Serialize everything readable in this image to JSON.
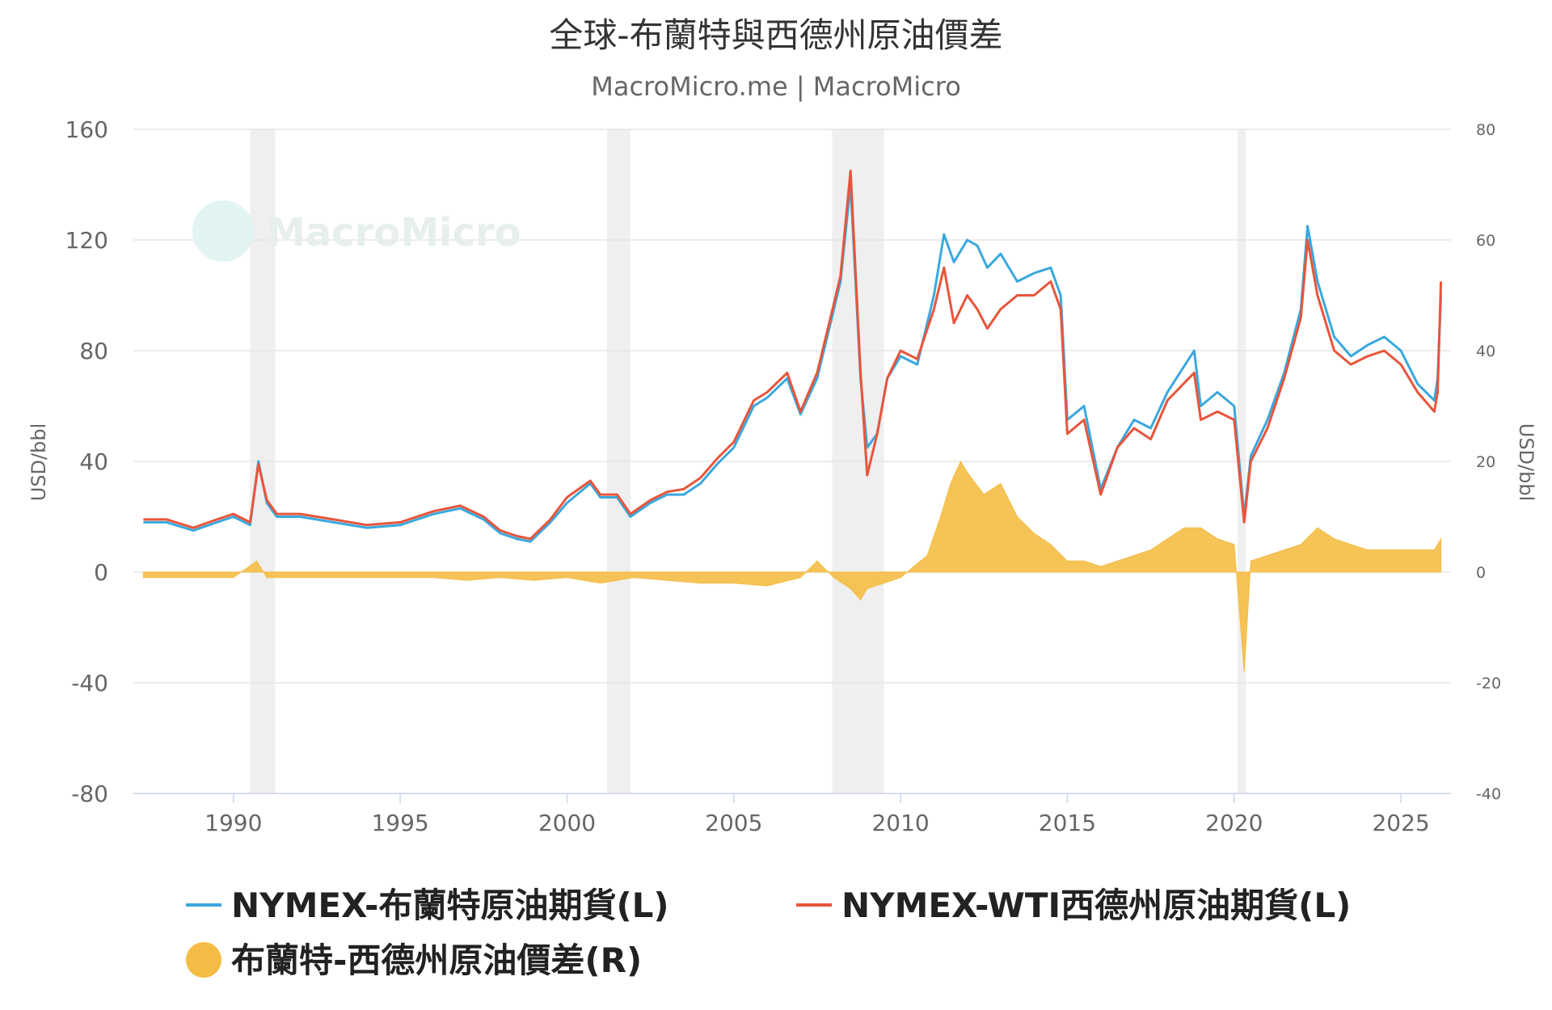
{
  "chart_data": {
    "type": "line",
    "title": "全球-布蘭特與西德州原油價差",
    "subtitle": "MacroMicro.me | MacroMicro",
    "watermark": "MacroMicro",
    "y_left": {
      "label": "USD/bbl",
      "min": -80,
      "max": 160,
      "ticks": [
        -80,
        -40,
        0,
        40,
        80,
        120,
        160
      ]
    },
    "y_right": {
      "label": "USD/bbl",
      "min": -40,
      "max": 80,
      "ticks": [
        -40,
        -20,
        0,
        20,
        40,
        60,
        80
      ]
    },
    "x_range": [
      1987.0,
      2026.5
    ],
    "x_ticks": [
      1990,
      1995,
      2000,
      2005,
      2010,
      2015,
      2020,
      2025
    ],
    "recessions": [
      [
        1990.5,
        1991.25
      ],
      [
        2001.2,
        2001.9
      ],
      [
        2007.95,
        2009.5
      ],
      [
        2020.1,
        2020.35
      ]
    ],
    "series": [
      {
        "name": "NYMEX-布蘭特原油期貨(L)",
        "axis": "left",
        "color": "#3aa8de",
        "x": [
          1987.3,
          1988.0,
          1988.8,
          1989.5,
          1990.0,
          1990.5,
          1990.75,
          1991.0,
          1991.3,
          1992.0,
          1993.0,
          1994.0,
          1995.0,
          1996.0,
          1996.8,
          1997.5,
          1998.0,
          1998.5,
          1998.9,
          1999.5,
          2000.0,
          2000.7,
          2001.0,
          2001.5,
          2001.9,
          2002.5,
          2003.0,
          2003.5,
          2004.0,
          2004.5,
          2005.0,
          2005.6,
          2006.0,
          2006.6,
          2007.0,
          2007.5,
          2007.9,
          2008.2,
          2008.5,
          2008.8,
          2009.0,
          2009.3,
          2009.6,
          2010.0,
          2010.5,
          2011.0,
          2011.3,
          2011.6,
          2012.0,
          2012.3,
          2012.6,
          2013.0,
          2013.5,
          2014.0,
          2014.5,
          2014.8,
          2015.0,
          2015.5,
          2016.0,
          2016.5,
          2017.0,
          2017.5,
          2018.0,
          2018.8,
          2019.0,
          2019.5,
          2020.0,
          2020.3,
          2020.5,
          2021.0,
          2021.5,
          2022.0,
          2022.2,
          2022.5,
          2023.0,
          2023.5,
          2024.0,
          2024.5,
          2025.0,
          2025.5,
          2026.0,
          2026.1,
          2026.2
        ],
        "y": [
          18,
          18,
          15,
          18,
          20,
          17,
          40,
          25,
          20,
          20,
          18,
          16,
          17,
          21,
          23,
          19,
          14,
          12,
          11,
          18,
          25,
          32,
          27,
          27,
          20,
          25,
          28,
          28,
          32,
          39,
          45,
          60,
          63,
          70,
          57,
          70,
          90,
          105,
          140,
          70,
          45,
          50,
          70,
          78,
          75,
          100,
          122,
          112,
          120,
          118,
          110,
          115,
          105,
          108,
          110,
          100,
          55,
          60,
          30,
          45,
          55,
          52,
          65,
          80,
          60,
          65,
          60,
          20,
          42,
          55,
          72,
          95,
          125,
          105,
          85,
          78,
          82,
          85,
          80,
          68,
          62,
          70,
          100
        ]
      },
      {
        "name": "NYMEX-WTI西德州原油期貨(L)",
        "axis": "left",
        "color": "#e8553b",
        "x": [
          1987.3,
          1988.0,
          1988.8,
          1989.5,
          1990.0,
          1990.5,
          1990.75,
          1991.0,
          1991.3,
          1992.0,
          1993.0,
          1994.0,
          1995.0,
          1996.0,
          1996.8,
          1997.5,
          1998.0,
          1998.5,
          1998.9,
          1999.5,
          2000.0,
          2000.7,
          2001.0,
          2001.5,
          2001.9,
          2002.5,
          2003.0,
          2003.5,
          2004.0,
          2004.5,
          2005.0,
          2005.6,
          2006.0,
          2006.6,
          2007.0,
          2007.5,
          2007.9,
          2008.2,
          2008.5,
          2008.8,
          2009.0,
          2009.3,
          2009.6,
          2010.0,
          2010.5,
          2011.0,
          2011.3,
          2011.6,
          2012.0,
          2012.3,
          2012.6,
          2013.0,
          2013.5,
          2014.0,
          2014.5,
          2014.8,
          2015.0,
          2015.5,
          2016.0,
          2016.5,
          2017.0,
          2017.5,
          2018.0,
          2018.8,
          2019.0,
          2019.5,
          2020.0,
          2020.3,
          2020.5,
          2021.0,
          2021.5,
          2022.0,
          2022.2,
          2022.5,
          2023.0,
          2023.5,
          2024.0,
          2024.5,
          2025.0,
          2025.5,
          2026.0,
          2026.1,
          2026.2
        ],
        "y": [
          19,
          19,
          16,
          19,
          21,
          18,
          39,
          26,
          21,
          21,
          19,
          17,
          18,
          22,
          24,
          20,
          15,
          13,
          12,
          19,
          27,
          33,
          28,
          28,
          21,
          26,
          29,
          30,
          34,
          41,
          47,
          62,
          65,
          72,
          58,
          72,
          92,
          107,
          145,
          72,
          35,
          50,
          70,
          80,
          77,
          95,
          110,
          90,
          100,
          95,
          88,
          95,
          100,
          100,
          105,
          95,
          50,
          55,
          28,
          45,
          52,
          48,
          62,
          72,
          55,
          58,
          55,
          18,
          40,
          52,
          70,
          92,
          120,
          100,
          80,
          75,
          78,
          80,
          75,
          65,
          58,
          65,
          105
        ]
      },
      {
        "name": "布蘭特-西德州原油價差(R)",
        "axis": "right",
        "color": "#f4bc44",
        "type": "area",
        "x": [
          1987.3,
          1988.0,
          1989.0,
          1990.0,
          1990.7,
          1991.0,
          1992.0,
          1993.0,
          1994.0,
          1995.0,
          1996.0,
          1997.0,
          1998.0,
          1999.0,
          2000.0,
          2001.0,
          2002.0,
          2003.0,
          2004.0,
          2005.0,
          2006.0,
          2007.0,
          2007.5,
          2008.0,
          2008.5,
          2008.8,
          2009.0,
          2009.5,
          2010.0,
          2010.8,
          2011.2,
          2011.5,
          2011.8,
          2012.0,
          2012.5,
          2013.0,
          2013.5,
          2014.0,
          2014.5,
          2015.0,
          2015.5,
          2016.0,
          2016.5,
          2017.0,
          2017.5,
          2018.0,
          2018.5,
          2019.0,
          2019.5,
          2020.0,
          2020.3,
          2020.5,
          2021.0,
          2021.5,
          2022.0,
          2022.5,
          2023.0,
          2023.5,
          2024.0,
          2024.5,
          2025.0,
          2025.5,
          2026.0,
          2026.2
        ],
        "y": [
          -1,
          -1,
          -1,
          -1,
          2,
          -1,
          -1,
          -1,
          -1,
          -1,
          -1,
          -1.5,
          -1,
          -1.5,
          -1,
          -2,
          -1,
          -1.5,
          -2,
          -2,
          -2.5,
          -1,
          2,
          -1,
          -3,
          -5,
          -3,
          -2,
          -1,
          3,
          10,
          16,
          20,
          18,
          14,
          16,
          10,
          7,
          5,
          2,
          2,
          1,
          2,
          3,
          4,
          6,
          8,
          8,
          6,
          5,
          -18,
          2,
          3,
          4,
          5,
          8,
          6,
          5,
          4,
          4,
          4,
          4,
          4,
          6
        ]
      }
    ],
    "legend": [
      {
        "label": "NYMEX-布蘭特原油期貨(L)",
        "color": "#3aa8de",
        "marker": "line"
      },
      {
        "label": "NYMEX-WTI西德州原油期貨(L)",
        "color": "#e8553b",
        "marker": "line"
      },
      {
        "label": "布蘭特-西德州原油價差(R)",
        "color": "#f4bc44",
        "marker": "circle"
      }
    ],
    "legend_placement": "bottom",
    "grid": true
  }
}
